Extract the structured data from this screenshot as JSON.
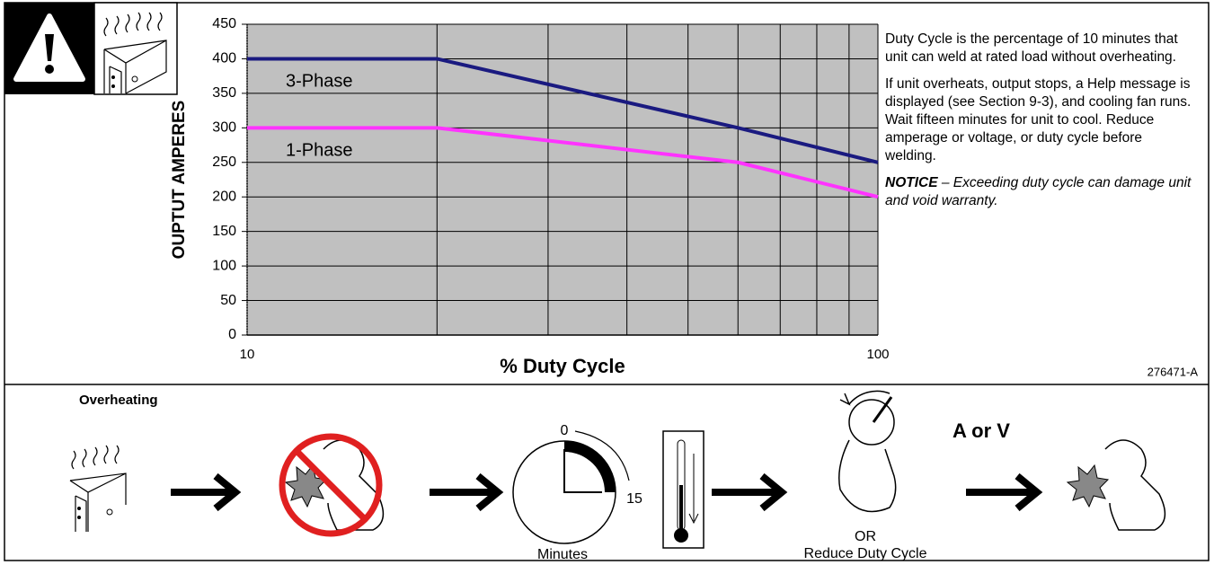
{
  "chart_data": {
    "type": "line",
    "y_label": "OUPTUT AMPERES",
    "x_label": "% Duty Cycle",
    "xlim": [
      10,
      100
    ],
    "xticks": [
      10,
      100
    ],
    "xscale": "log",
    "xgrid_minor": [
      20,
      30,
      40,
      50,
      60,
      70,
      80,
      90
    ],
    "ylim": [
      0,
      450
    ],
    "yticks": [
      0,
      50,
      100,
      150,
      200,
      250,
      300,
      350,
      400,
      450
    ],
    "grid": true,
    "background": "#c0c0c0",
    "series": [
      {
        "name": "3-Phase",
        "color": "#1a1a80",
        "x": [
          10,
          20,
          60,
          100
        ],
        "values": [
          400,
          400,
          300,
          250
        ]
      },
      {
        "name": "1-Phase",
        "color": "#ff33ff",
        "x": [
          10,
          20,
          60,
          100
        ],
        "values": [
          300,
          300,
          250,
          200
        ]
      }
    ]
  },
  "figure_code": "276471-A",
  "notes": [
    "Duty Cycle is the percentage of 10 minutes that unit can weld at rated load without overheating.",
    "If unit overheats, output stops, a Help message is displayed (see Section 9-3), and cooling fan runs. Wait fifteen minutes for unit to cool. Reduce amperage or voltage, or duty cycle before welding."
  ],
  "notice": {
    "label": "NOTICE",
    "text": "– Exceeding duty cycle can damage unit and void warranty."
  },
  "overheating": {
    "title": "Overheating",
    "clock_start": "0",
    "clock_end": "15",
    "clock_caption": "Minutes",
    "adjust_label": "A or V",
    "or_label": "OR",
    "reduce_label": "Reduce Duty Cycle"
  }
}
